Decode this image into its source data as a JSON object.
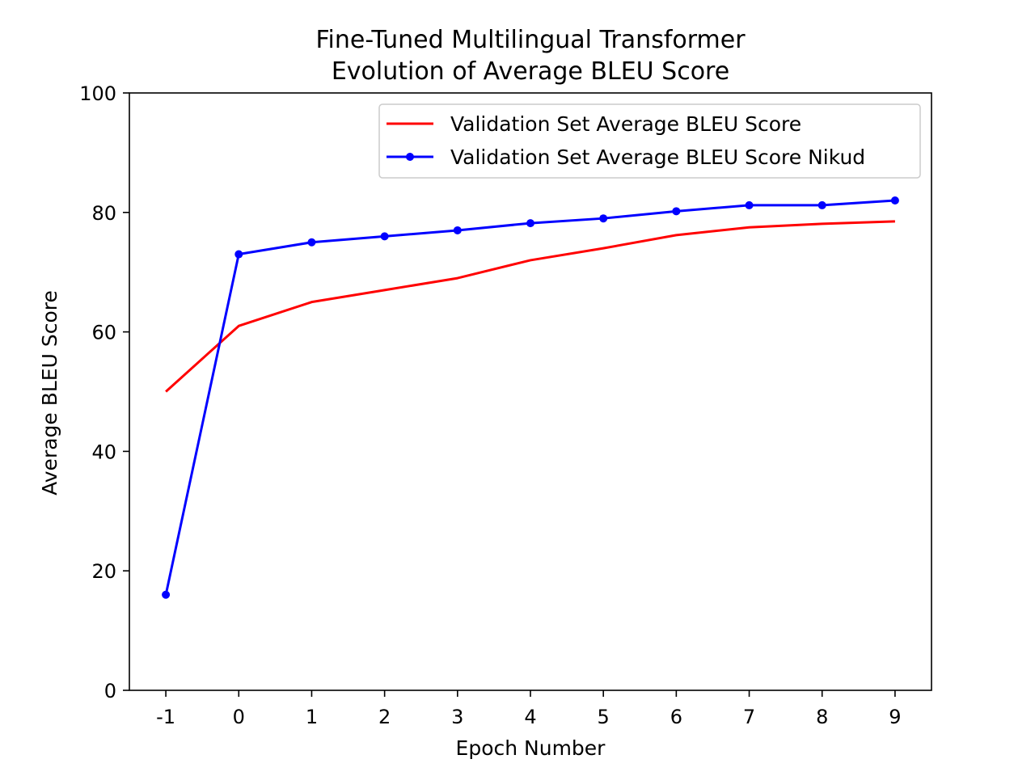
{
  "chart_data": {
    "type": "line",
    "title_lines": [
      "Fine-Tuned Multilingual Transformer",
      "Evolution of Average BLEU Score"
    ],
    "xlabel": "Epoch Number",
    "ylabel": "Average BLEU Score",
    "x": [
      -1,
      0,
      1,
      2,
      3,
      4,
      5,
      6,
      7,
      8,
      9
    ],
    "x_tick_labels": [
      "-1",
      "0",
      "1",
      "2",
      "3",
      "4",
      "5",
      "6",
      "7",
      "8",
      "9"
    ],
    "ylim": [
      0,
      100
    ],
    "y_ticks": [
      0,
      20,
      40,
      60,
      80,
      100
    ],
    "grid": false,
    "legend_position": "top-right",
    "series": [
      {
        "name": "Validation Set Average BLEU Score",
        "color": "#ff0000",
        "marker": "none",
        "values": [
          50,
          61,
          65,
          67,
          69,
          72,
          74,
          76.2,
          77.5,
          78.1,
          78.5
        ]
      },
      {
        "name": "Validation Set Average BLEU Score Nikud",
        "color": "#0000ff",
        "marker": "circle",
        "values": [
          16,
          73,
          75,
          76,
          77,
          78.2,
          79,
          80.2,
          81.2,
          81.2,
          82
        ]
      }
    ]
  }
}
